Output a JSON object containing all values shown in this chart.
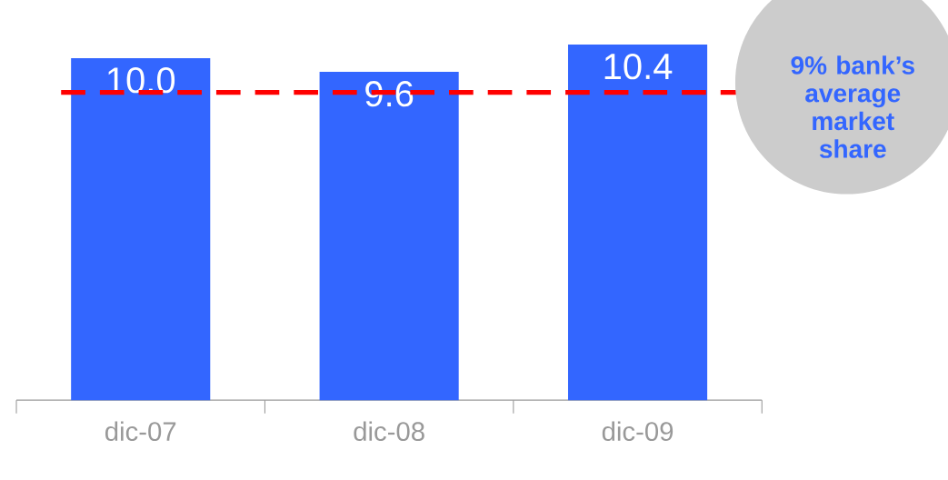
{
  "chart_data": {
    "type": "bar",
    "categories": [
      "dic-07",
      "dic-08",
      "dic-09"
    ],
    "values": [
      10.0,
      9.6,
      10.4
    ],
    "color": "#3366ff",
    "value_labels": [
      "10.0",
      "9.6",
      "10.4"
    ],
    "tick_labels": "x",
    "ref_lines": [
      {
        "axis": "y",
        "value": 9,
        "label": "9% bank’s average market share",
        "color": "#ff0000",
        "line_style": "dashed"
      }
    ]
  }
}
